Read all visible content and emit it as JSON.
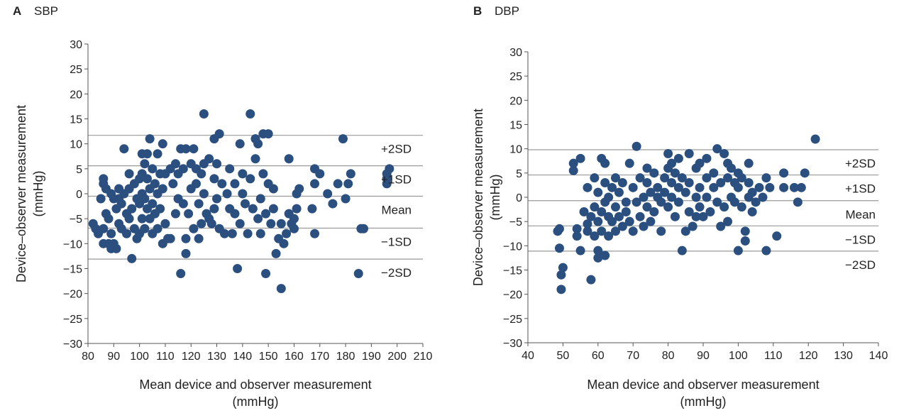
{
  "panels": [
    {
      "letter": "A",
      "name": "SBP"
    },
    {
      "letter": "B",
      "name": "DBP"
    }
  ],
  "colors": {
    "point": "#2b4f7e",
    "refline": "#9a9a9a",
    "axis": "#555555"
  },
  "chart_data": [
    {
      "type": "scatter",
      "title": "SBP",
      "panel": "A",
      "xlabel": [
        "Mean device and observer measurement",
        "(mmHg)"
      ],
      "ylabel": [
        "Device–observer measurement",
        "(mmHg)"
      ],
      "xlim": [
        80,
        210
      ],
      "ylim": [
        -30,
        30
      ],
      "xticks": [
        80,
        90,
        100,
        110,
        120,
        130,
        140,
        150,
        160,
        170,
        180,
        190,
        200,
        210
      ],
      "yticks": [
        30,
        25,
        20,
        15,
        10,
        5,
        0,
        -5,
        -10,
        -15,
        -20,
        -25,
        -30
      ],
      "ytick_labels": [
        "30",
        "25",
        "20",
        "15",
        "10",
        "5",
        "0",
        "−5",
        "−10",
        "−15",
        "−20",
        "−25",
        "−30"
      ],
      "reference_lines": [
        {
          "label": "+2SD",
          "y": 11.7
        },
        {
          "label": "+1SD",
          "y": 5.6
        },
        {
          "label": "Mean",
          "y": -0.5
        },
        {
          "label": "−1SD",
          "y": -6.9
        },
        {
          "label": "−2SD",
          "y": -13.1
        }
      ],
      "points": [
        [
          82,
          -6
        ],
        [
          83,
          -7
        ],
        [
          84,
          -8
        ],
        [
          85,
          -1
        ],
        [
          86,
          2
        ],
        [
          86,
          3
        ],
        [
          86,
          -7
        ],
        [
          86,
          -10
        ],
        [
          87,
          1
        ],
        [
          87,
          -4
        ],
        [
          88,
          -5
        ],
        [
          88,
          -10
        ],
        [
          89,
          0
        ],
        [
          89,
          -8
        ],
        [
          89,
          -11
        ],
        [
          90,
          -1
        ],
        [
          90,
          -10
        ],
        [
          91,
          -3
        ],
        [
          91,
          -11
        ],
        [
          92,
          1
        ],
        [
          92,
          -1
        ],
        [
          92,
          -6
        ],
        [
          93,
          -2
        ],
        [
          93,
          -7
        ],
        [
          94,
          9
        ],
        [
          94,
          0
        ],
        [
          95,
          -4
        ],
        [
          95,
          -8
        ],
        [
          96,
          4
        ],
        [
          96,
          1
        ],
        [
          96,
          -5
        ],
        [
          97,
          -3
        ],
        [
          97,
          -13
        ],
        [
          98,
          2
        ],
        [
          98,
          -7
        ],
        [
          99,
          -1
        ],
        [
          99,
          -9
        ],
        [
          100,
          3
        ],
        [
          100,
          -2
        ],
        [
          100,
          -8
        ],
        [
          101,
          8
        ],
        [
          101,
          4
        ],
        [
          101,
          0
        ],
        [
          101,
          -5
        ],
        [
          102,
          6
        ],
        [
          102,
          -1
        ],
        [
          102,
          -7
        ],
        [
          103,
          8
        ],
        [
          103,
          3
        ],
        [
          103,
          -3
        ],
        [
          104,
          11
        ],
        [
          104,
          1
        ],
        [
          104,
          -5
        ],
        [
          105,
          5
        ],
        [
          105,
          -2
        ],
        [
          105,
          -8
        ],
        [
          106,
          2
        ],
        [
          106,
          -4
        ],
        [
          107,
          8
        ],
        [
          107,
          0
        ],
        [
          107,
          -7
        ],
        [
          108,
          4
        ],
        [
          108,
          -3
        ],
        [
          109,
          10
        ],
        [
          109,
          1
        ],
        [
          109,
          -10
        ],
        [
          110,
          4
        ],
        [
          110,
          -6
        ],
        [
          111,
          -9
        ],
        [
          112,
          5
        ],
        [
          112,
          -9
        ],
        [
          113,
          2
        ],
        [
          114,
          6
        ],
        [
          114,
          -4
        ],
        [
          115,
          4
        ],
        [
          115,
          -1
        ],
        [
          116,
          9
        ],
        [
          116,
          -16
        ],
        [
          117,
          5
        ],
        [
          117,
          -2
        ],
        [
          118,
          9
        ],
        [
          118,
          -9
        ],
        [
          118,
          -12
        ],
        [
          119,
          -4
        ],
        [
          120,
          6
        ],
        [
          120,
          1
        ],
        [
          121,
          9
        ],
        [
          121,
          -7
        ],
        [
          122,
          5
        ],
        [
          122,
          2
        ],
        [
          123,
          -2
        ],
        [
          123,
          -9
        ],
        [
          124,
          4
        ],
        [
          124,
          -6
        ],
        [
          125,
          16
        ],
        [
          125,
          6
        ],
        [
          125,
          0
        ],
        [
          126,
          -4
        ],
        [
          127,
          7
        ],
        [
          127,
          -5
        ],
        [
          128,
          -6
        ],
        [
          129,
          11
        ],
        [
          129,
          3
        ],
        [
          129,
          -3
        ],
        [
          130,
          6
        ],
        [
          130,
          -1
        ],
        [
          131,
          12
        ],
        [
          131,
          -7
        ],
        [
          132,
          2
        ],
        [
          133,
          -8
        ],
        [
          134,
          0
        ],
        [
          135,
          5
        ],
        [
          135,
          -3
        ],
        [
          136,
          -8
        ],
        [
          137,
          2
        ],
        [
          137,
          -4
        ],
        [
          138,
          -15
        ],
        [
          139,
          10
        ],
        [
          139,
          -6
        ],
        [
          140,
          4
        ],
        [
          140,
          0
        ],
        [
          141,
          -2
        ],
        [
          142,
          -8
        ],
        [
          143,
          16
        ],
        [
          143,
          3
        ],
        [
          144,
          -3
        ],
        [
          145,
          11
        ],
        [
          145,
          7
        ],
        [
          146,
          10
        ],
        [
          146,
          -5
        ],
        [
          147,
          -1
        ],
        [
          147,
          -8
        ],
        [
          148,
          12
        ],
        [
          148,
          4
        ],
        [
          149,
          -16
        ],
        [
          149,
          -4
        ],
        [
          150,
          12
        ],
        [
          150,
          2
        ],
        [
          151,
          -6
        ],
        [
          152,
          -3
        ],
        [
          152,
          1
        ],
        [
          153,
          -12
        ],
        [
          154,
          -9
        ],
        [
          155,
          -19
        ],
        [
          155,
          -6
        ],
        [
          156,
          -10
        ],
        [
          157,
          -8
        ],
        [
          158,
          -4
        ],
        [
          158,
          7
        ],
        [
          159,
          -6
        ],
        [
          160,
          -5
        ],
        [
          160,
          -7
        ],
        [
          161,
          -3
        ],
        [
          161,
          0
        ],
        [
          162,
          1
        ],
        [
          167,
          -3
        ],
        [
          168,
          -8
        ],
        [
          168,
          2
        ],
        [
          168,
          5
        ],
        [
          170,
          4
        ],
        [
          173,
          0
        ],
        [
          175,
          -2
        ],
        [
          177,
          2
        ],
        [
          179,
          11
        ],
        [
          180,
          -1
        ],
        [
          181,
          2
        ],
        [
          182,
          4
        ],
        [
          185,
          -16
        ],
        [
          186,
          -7
        ],
        [
          187,
          -7
        ],
        [
          196,
          2
        ],
        [
          196,
          4
        ],
        [
          197,
          5
        ],
        [
          196,
          3
        ]
      ]
    },
    {
      "type": "scatter",
      "title": "DBP",
      "panel": "B",
      "xlabel": [
        "Mean device and observer measurement",
        "(mmHg)"
      ],
      "ylabel": [
        "Device–observer measurement",
        "(mmHg)"
      ],
      "xlim": [
        40,
        140
      ],
      "ylim": [
        -30,
        30
      ],
      "xticks": [
        40,
        50,
        60,
        70,
        80,
        90,
        100,
        110,
        120,
        130,
        140
      ],
      "yticks": [
        30,
        25,
        20,
        15,
        10,
        5,
        0,
        -5,
        -10,
        -15,
        -20,
        -25,
        -30
      ],
      "ytick_labels": [
        "30",
        "25",
        "20",
        "15",
        "10",
        "5",
        "0",
        "−5",
        "−10",
        "−15",
        "−20",
        "−25",
        "−30"
      ],
      "reference_lines": [
        {
          "label": "+2SD",
          "y": 9.8
        },
        {
          "label": "+1SD",
          "y": 4.6
        },
        {
          "label": "Mean",
          "y": -0.7
        },
        {
          "label": "−1SD",
          "y": -5.9
        },
        {
          "label": "−2SD",
          "y": -11.1
        }
      ],
      "points": [
        [
          48.5,
          -7
        ],
        [
          49,
          -10.5
        ],
        [
          49.5,
          -19
        ],
        [
          49.5,
          -16
        ],
        [
          50,
          -14.5
        ],
        [
          49,
          -6.5
        ],
        [
          53,
          5.5
        ],
        [
          53,
          7
        ],
        [
          54,
          -6.5
        ],
        [
          54,
          -8
        ],
        [
          55,
          -11
        ],
        [
          55,
          8
        ],
        [
          56,
          -3
        ],
        [
          57,
          2
        ],
        [
          57,
          -5.5
        ],
        [
          57,
          -7
        ],
        [
          58,
          -17
        ],
        [
          58,
          -4
        ],
        [
          59,
          -2
        ],
        [
          59,
          -8
        ],
        [
          59,
          4
        ],
        [
          60,
          -11
        ],
        [
          60,
          -12.5
        ],
        [
          60,
          1
        ],
        [
          60,
          -5
        ],
        [
          61,
          8
        ],
        [
          61,
          -3
        ],
        [
          61,
          -7
        ],
        [
          62,
          -12
        ],
        [
          62,
          3
        ],
        [
          62,
          -1
        ],
        [
          62,
          7
        ],
        [
          63,
          0
        ],
        [
          63,
          -4
        ],
        [
          63,
          -8
        ],
        [
          64,
          2
        ],
        [
          64,
          -5
        ],
        [
          65,
          4
        ],
        [
          65,
          -2
        ],
        [
          65,
          -7
        ],
        [
          66,
          1
        ],
        [
          66,
          -4
        ],
        [
          67,
          3
        ],
        [
          67,
          -6
        ],
        [
          68,
          -1
        ],
        [
          68,
          -3
        ],
        [
          69,
          7
        ],
        [
          69,
          -5
        ],
        [
          70,
          2
        ],
        [
          70,
          -7
        ],
        [
          71,
          10.5
        ],
        [
          71,
          -1
        ],
        [
          72,
          4
        ],
        [
          72,
          -4
        ],
        [
          73,
          0
        ],
        [
          73,
          -6
        ],
        [
          74,
          6
        ],
        [
          74,
          3
        ],
        [
          74,
          -2
        ],
        [
          75,
          -5
        ],
        [
          75,
          1
        ],
        [
          76,
          5
        ],
        [
          76,
          -3
        ],
        [
          77,
          2
        ],
        [
          77,
          0
        ],
        [
          78,
          -1
        ],
        [
          78,
          -7
        ],
        [
          79,
          4
        ],
        [
          79,
          1
        ],
        [
          80,
          9
        ],
        [
          80,
          6
        ],
        [
          80,
          -2
        ],
        [
          81,
          7
        ],
        [
          81,
          3
        ],
        [
          81,
          0
        ],
        [
          82,
          5
        ],
        [
          82,
          -4
        ],
        [
          83,
          8
        ],
        [
          83,
          2
        ],
        [
          83,
          -1
        ],
        [
          84,
          4
        ],
        [
          84,
          -11
        ],
        [
          85,
          1
        ],
        [
          85,
          -7
        ],
        [
          86,
          9
        ],
        [
          86,
          3
        ],
        [
          86,
          -3
        ],
        [
          87,
          -6
        ],
        [
          88,
          6
        ],
        [
          88,
          0
        ],
        [
          88,
          -4
        ],
        [
          89,
          7
        ],
        [
          89,
          2
        ],
        [
          89,
          -2
        ],
        [
          90,
          -4
        ],
        [
          91,
          8
        ],
        [
          91,
          4
        ],
        [
          91,
          0
        ],
        [
          92,
          -3
        ],
        [
          93,
          5
        ],
        [
          93,
          2
        ],
        [
          94,
          10
        ],
        [
          94,
          -1
        ],
        [
          95,
          -6
        ],
        [
          95,
          3
        ],
        [
          96,
          9
        ],
        [
          96,
          -2
        ],
        [
          97,
          7
        ],
        [
          97,
          4
        ],
        [
          97,
          -5
        ],
        [
          98,
          0
        ],
        [
          98,
          6
        ],
        [
          99,
          3
        ],
        [
          99,
          -1
        ],
        [
          100,
          5
        ],
        [
          100,
          2
        ],
        [
          100,
          -11
        ],
        [
          101,
          -2
        ],
        [
          101,
          4
        ],
        [
          102,
          -7
        ],
        [
          102,
          -9
        ],
        [
          103,
          7
        ],
        [
          103,
          3
        ],
        [
          103,
          0
        ],
        [
          104,
          1
        ],
        [
          104,
          -3
        ],
        [
          105,
          -1
        ],
        [
          106,
          2
        ],
        [
          107,
          0
        ],
        [
          108,
          4
        ],
        [
          108,
          -11
        ],
        [
          109,
          2
        ],
        [
          111,
          -8
        ],
        [
          113,
          5
        ],
        [
          113,
          2
        ],
        [
          116,
          2
        ],
        [
          117,
          -1
        ],
        [
          118,
          2
        ],
        [
          119,
          5
        ],
        [
          122,
          12
        ]
      ]
    }
  ]
}
